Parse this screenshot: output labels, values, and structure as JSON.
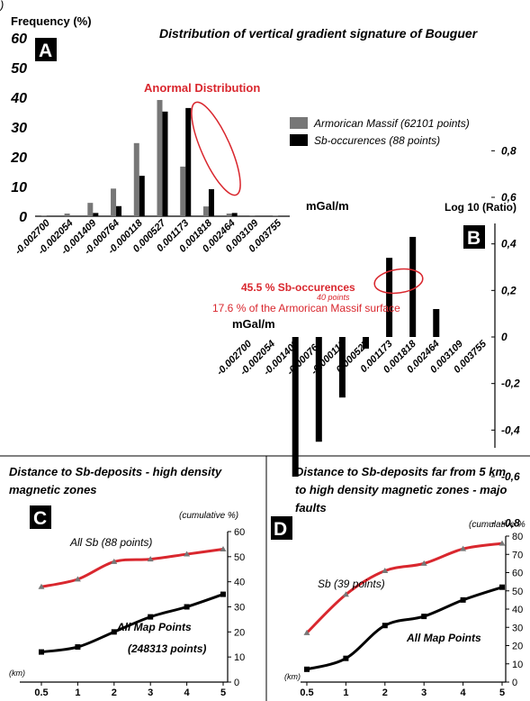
{
  "corner_text": ")",
  "chart_data": [
    {
      "panel": "A",
      "type": "bar",
      "title": "Distribution of vertical gradient signature of Bouguer",
      "ylabel": "Frequency (%)",
      "xlabel": "mGal/m",
      "ylim": [
        0,
        60
      ],
      "yticks": [
        "0",
        "10",
        "20",
        "30",
        "40",
        "50",
        "60"
      ],
      "categories": [
        "-0.002700",
        "-0.002054",
        "-0.001409",
        "-0.000764",
        "-0.000118",
        "0.000527",
        "0.001173",
        "0.001818",
        "0.002464",
        "0.003109",
        "0.003755"
      ],
      "series": [
        {
          "name": "Armorican Massif (62101 points)",
          "color": "#777777",
          "values": [
            0.1,
            0.9,
            4.5,
            9.3,
            24.6,
            39.1,
            16.7,
            3.3,
            0.9,
            0.3,
            0.1
          ]
        },
        {
          "name": "Sb-occurences (88 points)",
          "color": "#000000",
          "values": [
            0,
            0,
            1.1,
            3.4,
            13.6,
            35.2,
            36.4,
            9.1,
            1.1,
            0,
            0
          ]
        }
      ],
      "legend_position": "right",
      "annotation": "Anormal Distribution",
      "colors": {
        "annotation": "#d9272e"
      }
    },
    {
      "panel": "B",
      "type": "bar",
      "ylabel": "Log 10 (Ratio)",
      "xlabel": "mGal/m",
      "ylim": [
        -0.8,
        0.8
      ],
      "yticks": [
        "0,8",
        "0,6",
        "0,4",
        "0,2",
        "0",
        "-0,2",
        "-0,4",
        "-0,6",
        "-0,8"
      ],
      "categories": [
        "-0.002700",
        "-0.002054",
        "-0.001409",
        "-0.000764",
        "-0.000118",
        "0.000527",
        "0.001173",
        "0.001818",
        "0.002464",
        "0.003109",
        "0.003755"
      ],
      "values": [
        0,
        0,
        -0.6,
        -0.45,
        -0.26,
        -0.05,
        0.34,
        0.43,
        0.12,
        0,
        0
      ],
      "annotation": {
        "line1": "45.5 % Sb-occurences",
        "line2": "40 points",
        "line3": "17.6 %  of the Armorican Massif surface"
      },
      "colors": {
        "bars": "#000000",
        "annotation": "#d9272e"
      }
    },
    {
      "panel": "C",
      "type": "line",
      "title_line1": "Distance to Sb-deposits - high density",
      "title_line2": "magnetic zones",
      "xlabel": "(km)",
      "ylabel": "(cumulative %)",
      "xticks": [
        "0.5",
        "1",
        "2",
        "3",
        "4",
        "5"
      ],
      "yticks": [
        "0",
        "10",
        "20",
        "30",
        "40",
        "50",
        "60"
      ],
      "ylim": [
        0,
        60
      ],
      "series": [
        {
          "name": "All Sb (88 points)",
          "color": "#d9272e",
          "marker": "triangle",
          "x": [
            0.5,
            1,
            1.5,
            2,
            2.5,
            3
          ],
          "y": [
            38,
            41,
            48,
            49,
            51,
            53
          ]
        },
        {
          "name_line1": "All Map Points",
          "name_line2": "(248313 points)",
          "color": "#000000",
          "marker": "square",
          "x": [
            0.5,
            1,
            1.5,
            2,
            2.5,
            3
          ],
          "y": [
            12,
            14,
            20,
            26,
            30,
            35
          ]
        }
      ]
    },
    {
      "panel": "D",
      "type": "line",
      "title_line1": "Distance to Sb-deposits far from 5 km",
      "title_line2": "to high density magnetic zones - majo",
      "title_line3": "faults",
      "xlabel": "(km)",
      "ylabel": "(cumulative %",
      "xticks": [
        "0.5",
        "1",
        "2",
        "3",
        "4",
        "5"
      ],
      "yticks": [
        "0",
        "10",
        "20",
        "30",
        "40",
        "50",
        "60",
        "70",
        "80"
      ],
      "ylim": [
        0,
        80
      ],
      "series": [
        {
          "name": "Sb (39 points)",
          "color": "#d9272e",
          "marker": "triangle",
          "x": [
            0.5,
            1,
            1.5,
            2,
            2.5,
            3
          ],
          "y": [
            27,
            48,
            61,
            65,
            73,
            76
          ]
        },
        {
          "name": "All Map Points",
          "color": "#000000",
          "marker": "square",
          "x": [
            0.5,
            1,
            1.5,
            2,
            2.5,
            3
          ],
          "y": [
            7,
            13,
            31,
            36,
            45,
            52
          ]
        }
      ]
    }
  ]
}
